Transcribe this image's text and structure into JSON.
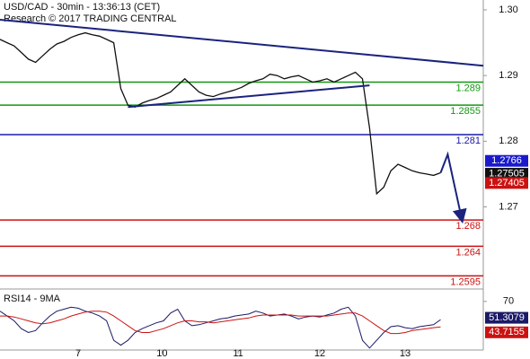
{
  "chart_data": {
    "type": "line",
    "title": "USD/CAD - 30min - 13:36:13 (CET)",
    "subtitle": "Research © 2017 TRADING CENTRAL",
    "xlim": [
      0,
      68
    ],
    "xticks": [
      {
        "value": 11,
        "label": "7"
      },
      {
        "value": 22.8,
        "label": "10"
      },
      {
        "value": 33.5,
        "label": "11"
      },
      {
        "value": 45,
        "label": "12"
      },
      {
        "value": 57,
        "label": "13"
      }
    ],
    "ylim": [
      1.2575,
      1.3015
    ],
    "yticks": [
      {
        "value": 1.27,
        "label": "1.27"
      },
      {
        "value": 1.28,
        "label": "1.28"
      },
      {
        "value": 1.29,
        "label": "1.29"
      },
      {
        "value": 1.3,
        "label": "1.30"
      }
    ],
    "series": [
      {
        "name": "USD/CAD",
        "color": "#111111",
        "values": [
          1.2955,
          1.295,
          1.2945,
          1.2935,
          1.2925,
          1.292,
          1.293,
          1.294,
          1.2948,
          1.2952,
          1.2958,
          1.2962,
          1.2965,
          1.2962,
          1.296,
          1.2955,
          1.295,
          1.288,
          1.2855,
          1.2852,
          1.2858,
          1.2862,
          1.2865,
          1.287,
          1.2875,
          1.2885,
          1.2895,
          1.2885,
          1.2875,
          1.287,
          1.2868,
          1.2872,
          1.2875,
          1.2878,
          1.2882,
          1.2888,
          1.2892,
          1.2895,
          1.2902,
          1.29,
          1.2895,
          1.2898,
          1.29,
          1.2895,
          1.289,
          1.2892,
          1.2895,
          1.289,
          1.2895,
          1.29,
          1.2905,
          1.2895,
          1.282,
          1.272,
          1.273,
          1.2755,
          1.2765,
          1.276,
          1.2755,
          1.2752,
          1.275,
          1.2748,
          1.2752
        ]
      }
    ],
    "trendlines": [
      {
        "x": [
          0,
          68
        ],
        "values": [
          1.2985,
          1.2915
        ],
        "color": "#1a237e"
      },
      {
        "x": [
          18,
          52
        ],
        "values": [
          1.2852,
          1.2885
        ],
        "color": "#1a237e"
      }
    ],
    "forecast": {
      "x": [
        62,
        63,
        65
      ],
      "values": [
        1.2752,
        1.278,
        1.268
      ],
      "color": "#1a237e"
    },
    "levels": [
      {
        "value": 1.289,
        "color": "#119911"
      },
      {
        "value": 1.2855,
        "color": "#119911"
      },
      {
        "value": 1.281,
        "color": "#1a1aaa"
      },
      {
        "value": 1.268,
        "color": "#cc1111"
      },
      {
        "value": 1.264,
        "color": "#cc1111"
      },
      {
        "value": 1.2595,
        "color": "#cc1111"
      }
    ],
    "price_markers": [
      {
        "value": 1.2766,
        "color": "#1a1acc"
      },
      {
        "value": 1.27505,
        "color": "#111111"
      },
      {
        "value": 1.27405,
        "color": "#cc1111"
      }
    ],
    "rsi": {
      "title": "RSI14 - 9MA",
      "ylim": [
        20,
        80
      ],
      "yticks": [
        70
      ],
      "series": [
        {
          "name": "RSI14",
          "color": "#1a1a66",
          "values": [
            60,
            55,
            50,
            42,
            38,
            40,
            48,
            55,
            60,
            62,
            64,
            63,
            60,
            58,
            55,
            50,
            30,
            25,
            30,
            38,
            42,
            45,
            48,
            50,
            58,
            62,
            50,
            45,
            46,
            48,
            50,
            52,
            53,
            55,
            56,
            57,
            60,
            58,
            55,
            56,
            57,
            55,
            52,
            54,
            55,
            54,
            56,
            58,
            62,
            64,
            55,
            30,
            22,
            30,
            38,
            44,
            45,
            43,
            42,
            44,
            45,
            46,
            51.3079
          ]
        },
        {
          "name": "9MA",
          "color": "#cc1111",
          "values": [
            55,
            55,
            54,
            52,
            50,
            48,
            47,
            48,
            50,
            52,
            55,
            57,
            59,
            60,
            60,
            59,
            55,
            50,
            45,
            40,
            38,
            38,
            40,
            42,
            45,
            48,
            50,
            50,
            49,
            49,
            48,
            49,
            50,
            51,
            52,
            53,
            55,
            56,
            56,
            56,
            56,
            56,
            55,
            55,
            55,
            55,
            55,
            56,
            57,
            58,
            58,
            55,
            50,
            45,
            40,
            37,
            37,
            38,
            40,
            41,
            42,
            43,
            43.7155
          ]
        }
      ],
      "markers": [
        {
          "value": 51.3079,
          "color": "#1a1a66"
        },
        {
          "value": 43.7155,
          "color": "#cc1111"
        }
      ]
    }
  }
}
